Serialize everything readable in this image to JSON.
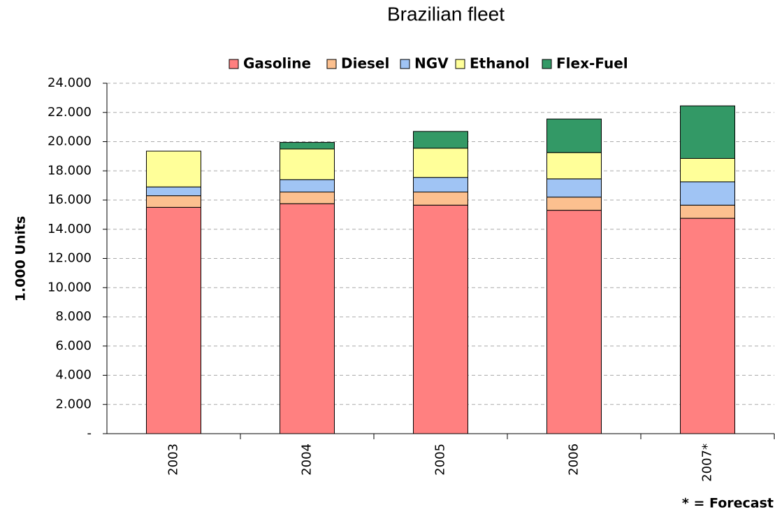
{
  "chart_data": {
    "type": "stacked_bar",
    "title": "Brazilian fleet",
    "y_label": "1.000 Units",
    "footnote": "* = Forecast",
    "categories": [
      "2003",
      "2004",
      "2005",
      "2006",
      "2007*"
    ],
    "series": [
      {
        "name": "Gasoline",
        "color": "#ff8080",
        "values": [
          15500,
          15750,
          15650,
          15300,
          14750
        ]
      },
      {
        "name": "Diesel",
        "color": "#fcc08f",
        "values": [
          800,
          800,
          900,
          900,
          900
        ]
      },
      {
        "name": "NGV",
        "color": "#a0c4f4",
        "values": [
          600,
          850,
          1000,
          1250,
          1600
        ]
      },
      {
        "name": "Ethanol",
        "color": "#ffff99",
        "values": [
          2450,
          2100,
          2000,
          1800,
          1600
        ]
      },
      {
        "name": "Flex-Fuel",
        "color": "#339966",
        "values": [
          0,
          450,
          1150,
          2300,
          3600
        ]
      }
    ],
    "ylim": [
      0,
      24000
    ],
    "yticks": [
      {
        "value": 0,
        "label": "-"
      },
      {
        "value": 2000,
        "label": "2.000"
      },
      {
        "value": 4000,
        "label": "4.000"
      },
      {
        "value": 6000,
        "label": "6.000"
      },
      {
        "value": 8000,
        "label": "8.000"
      },
      {
        "value": 10000,
        "label": "10.000"
      },
      {
        "value": 12000,
        "label": "12.000"
      },
      {
        "value": 14000,
        "label": "14.000"
      },
      {
        "value": 16000,
        "label": "16.000"
      },
      {
        "value": 18000,
        "label": "18.000"
      },
      {
        "value": 20000,
        "label": "20.000"
      },
      {
        "value": 22000,
        "label": "22.000"
      },
      {
        "value": 24000,
        "label": "24.000"
      }
    ],
    "grid": true,
    "legend": "top"
  }
}
